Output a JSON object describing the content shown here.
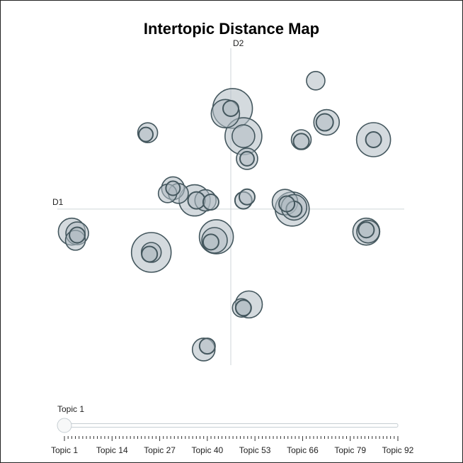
{
  "chart_data": {
    "type": "scatter",
    "title": "Intertopic Distance Map",
    "xlabel": "D1",
    "ylabel": "D2",
    "xlim": [
      -9.6,
      9.6
    ],
    "ylim": [
      -9,
      9.6
    ],
    "grid": false,
    "colors": {
      "fill": "#b0bcc3",
      "stroke": "#44575e",
      "axis": "#cfd6d9"
    },
    "points": [
      {
        "x": 4.7,
        "y": 7.4,
        "size": 13
      },
      {
        "x": 5.3,
        "y": 5.0,
        "size": 18
      },
      {
        "x": 5.2,
        "y": 5.0,
        "size": 12
      },
      {
        "x": 7.9,
        "y": 4.0,
        "size": 24
      },
      {
        "x": 7.9,
        "y": 4.0,
        "size": 11
      },
      {
        "x": 3.9,
        "y": 4.0,
        "size": 14
      },
      {
        "x": 3.9,
        "y": 3.9,
        "size": 11
      },
      {
        "x": 0.1,
        "y": 5.8,
        "size": 28
      },
      {
        "x": -0.3,
        "y": 5.5,
        "size": 20
      },
      {
        "x": 0.0,
        "y": 5.8,
        "size": 11
      },
      {
        "x": 0.7,
        "y": 4.2,
        "size": 26
      },
      {
        "x": 0.7,
        "y": 4.2,
        "size": 16
      },
      {
        "x": 0.9,
        "y": 2.9,
        "size": 15
      },
      {
        "x": 0.9,
        "y": 2.9,
        "size": 10
      },
      {
        "x": -4.6,
        "y": 4.4,
        "size": 14
      },
      {
        "x": -4.7,
        "y": 4.3,
        "size": 10
      },
      {
        "x": -3.2,
        "y": 1.2,
        "size": 16
      },
      {
        "x": -3.5,
        "y": 0.9,
        "size": 13
      },
      {
        "x": -2.9,
        "y": 0.9,
        "size": 14
      },
      {
        "x": -3.2,
        "y": 1.2,
        "size": 10
      },
      {
        "x": -2.0,
        "y": 0.5,
        "size": 22
      },
      {
        "x": -1.4,
        "y": 0.5,
        "size": 15
      },
      {
        "x": -1.9,
        "y": 0.5,
        "size": 12
      },
      {
        "x": -1.1,
        "y": 0.4,
        "size": 11
      },
      {
        "x": 0.7,
        "y": 0.5,
        "size": 12
      },
      {
        "x": 0.9,
        "y": 0.7,
        "size": 11
      },
      {
        "x": 3.0,
        "y": 0.4,
        "size": 18
      },
      {
        "x": 3.4,
        "y": 0.0,
        "size": 24
      },
      {
        "x": 3.5,
        "y": 0.1,
        "size": 18
      },
      {
        "x": 3.5,
        "y": 0.0,
        "size": 11
      },
      {
        "x": 3.1,
        "y": 0.3,
        "size": 11
      },
      {
        "x": -8.8,
        "y": -1.3,
        "size": 19
      },
      {
        "x": -8.5,
        "y": -1.4,
        "size": 16
      },
      {
        "x": -8.6,
        "y": -1.8,
        "size": 14
      },
      {
        "x": -8.5,
        "y": -1.5,
        "size": 11
      },
      {
        "x": -4.4,
        "y": -2.5,
        "size": 28
      },
      {
        "x": -4.4,
        "y": -2.5,
        "size": 14
      },
      {
        "x": -4.5,
        "y": -2.6,
        "size": 11
      },
      {
        "x": -0.8,
        "y": -1.6,
        "size": 24
      },
      {
        "x": -0.9,
        "y": -1.8,
        "size": 18
      },
      {
        "x": -1.1,
        "y": -1.9,
        "size": 11
      },
      {
        "x": 7.5,
        "y": -1.3,
        "size": 19
      },
      {
        "x": 7.6,
        "y": -1.3,
        "size": 16
      },
      {
        "x": 7.5,
        "y": -1.2,
        "size": 11
      },
      {
        "x": 1.0,
        "y": -5.5,
        "size": 19
      },
      {
        "x": 0.6,
        "y": -5.7,
        "size": 13
      },
      {
        "x": 0.7,
        "y": -5.7,
        "size": 11
      },
      {
        "x": -1.5,
        "y": -8.1,
        "size": 16
      },
      {
        "x": -1.3,
        "y": -7.9,
        "size": 11
      }
    ]
  },
  "slider": {
    "current_label": "Topic 1",
    "value": 1,
    "min": 1,
    "max": 92,
    "tick_labels": [
      "Topic 1",
      "Topic 14",
      "Topic 27",
      "Topic 40",
      "Topic 53",
      "Topic 66",
      "Topic 79",
      "Topic 92"
    ]
  }
}
